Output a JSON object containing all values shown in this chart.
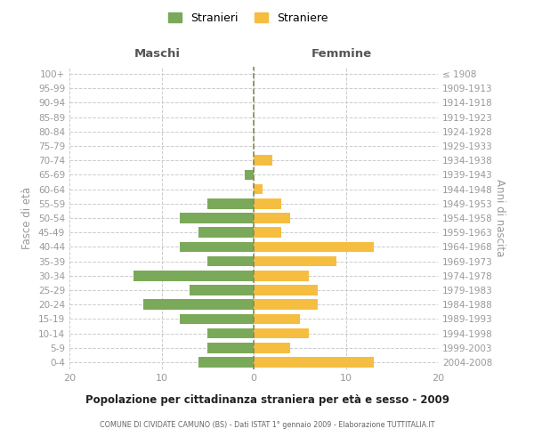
{
  "age_groups": [
    "0-4",
    "5-9",
    "10-14",
    "15-19",
    "20-24",
    "25-29",
    "30-34",
    "35-39",
    "40-44",
    "45-49",
    "50-54",
    "55-59",
    "60-64",
    "65-69",
    "70-74",
    "75-79",
    "80-84",
    "85-89",
    "90-94",
    "95-99",
    "100+"
  ],
  "birth_years": [
    "2004-2008",
    "1999-2003",
    "1994-1998",
    "1989-1993",
    "1984-1988",
    "1979-1983",
    "1974-1978",
    "1969-1973",
    "1964-1968",
    "1959-1963",
    "1954-1958",
    "1949-1953",
    "1944-1948",
    "1939-1943",
    "1934-1938",
    "1929-1933",
    "1924-1928",
    "1919-1923",
    "1914-1918",
    "1909-1913",
    "≤ 1908"
  ],
  "maschi": [
    6,
    5,
    5,
    8,
    12,
    7,
    13,
    5,
    8,
    6,
    8,
    5,
    0,
    1,
    0,
    0,
    0,
    0,
    0,
    0,
    0
  ],
  "femmine": [
    13,
    4,
    6,
    5,
    7,
    7,
    6,
    9,
    13,
    3,
    4,
    3,
    1,
    0,
    2,
    0,
    0,
    0,
    0,
    0,
    0
  ],
  "maschi_color": "#7aaa59",
  "femmine_color": "#f5be41",
  "center_line_color": "#888855",
  "grid_color": "#cccccc",
  "background_color": "#ffffff",
  "title": "Popolazione per cittadinanza straniera per età e sesso - 2009",
  "subtitle": "COMUNE DI CIVIDATE CAMUNO (BS) - Dati ISTAT 1° gennaio 2009 - Elaborazione TUTTITALIA.IT",
  "xlabel_left": "Maschi",
  "xlabel_right": "Femmine",
  "ylabel_left": "Fasce di età",
  "ylabel_right": "Anni di nascita",
  "xlim": 20,
  "legend_stranieri": "Stranieri",
  "legend_straniere": "Straniere"
}
